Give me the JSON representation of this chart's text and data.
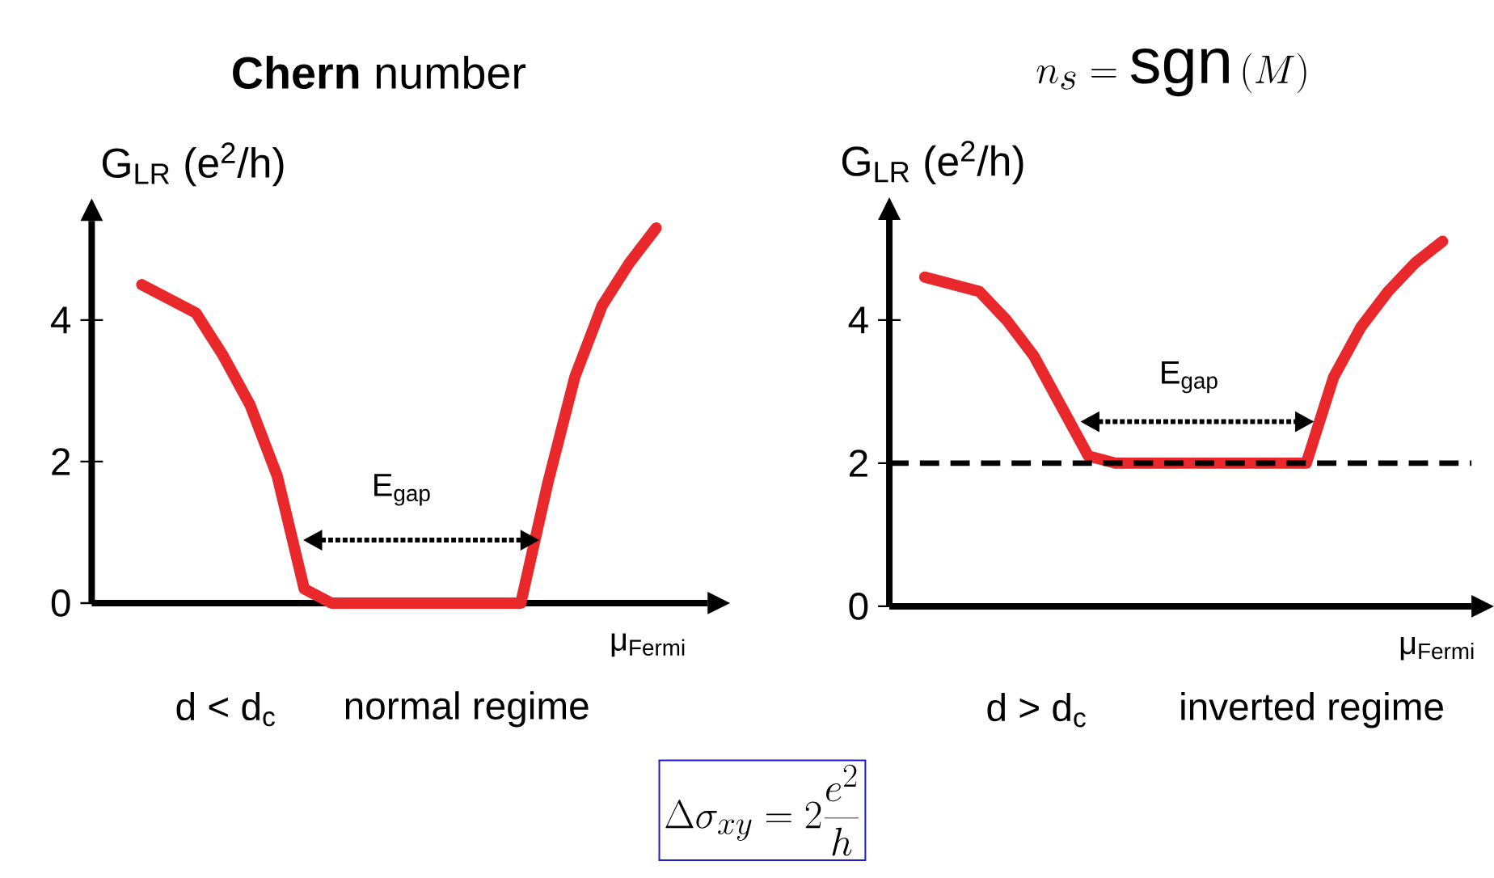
{
  "chart_data": [
    {
      "type": "line",
      "title": "**Chern** number",
      "ylabel": "G$_{LR}$ (e$^{2}$/h)",
      "xlabel": "μ$_{Fermi}$",
      "categories": [
        null,
        null,
        null,
        null,
        null,
        null,
        null,
        null,
        null,
        null,
        null,
        null,
        null,
        null,
        null,
        null,
        null,
        null,
        null,
        null
      ],
      "series": [
        {
          "color": "#e8282a",
          "values": [
            4.5,
            4.3,
            4.1,
            3.5,
            2.8,
            1.8,
            0.2,
            0,
            0,
            0,
            0,
            0,
            0,
            0,
            0,
            1.7,
            3.2,
            4.2,
            4.8,
            5.3
          ]
        }
      ],
      "ylim": [
        0,
        5.4
      ],
      "yticks": [
        0,
        2,
        4
      ],
      "annotations": [
        "E$_{gap}$",
        "d < d$_{c}$",
        "normal regime"
      ]
    },
    {
      "type": "line",
      "title": "n_s = \\mathrm{sgn}\\,(M)",
      "ylabel": "G$_{LR}$ (e$^{2}$/h)",
      "xlabel": "μ$_{Fermi}$",
      "categories": [
        null,
        null,
        null,
        null,
        null,
        null,
        null,
        null,
        null,
        null,
        null,
        null,
        null,
        null,
        null,
        null,
        null,
        null,
        null,
        null
      ],
      "series": [
        {
          "color": "#e8282a",
          "values": [
            4.6,
            4.5,
            4.4,
            4.0,
            3.5,
            2.8,
            2.1,
            2,
            2,
            2,
            2,
            2,
            2,
            2,
            2,
            3.2,
            3.9,
            4.4,
            4.8,
            5.1
          ]
        }
      ],
      "ylim": [
        0,
        5.4
      ],
      "yticks": [
        0,
        2,
        4
      ],
      "ref_lines": [
        {
          "axis": "y",
          "value": 2,
          "color": "#000000",
          "line_style": "dashed"
        }
      ],
      "annotations": [
        "E$_{gap}$",
        "d > d$_{c}$",
        "inverted regime",
        "\\Delta\\sigma_{xy} = 2\\frac{e^2}{h}"
      ]
    }
  ]
}
